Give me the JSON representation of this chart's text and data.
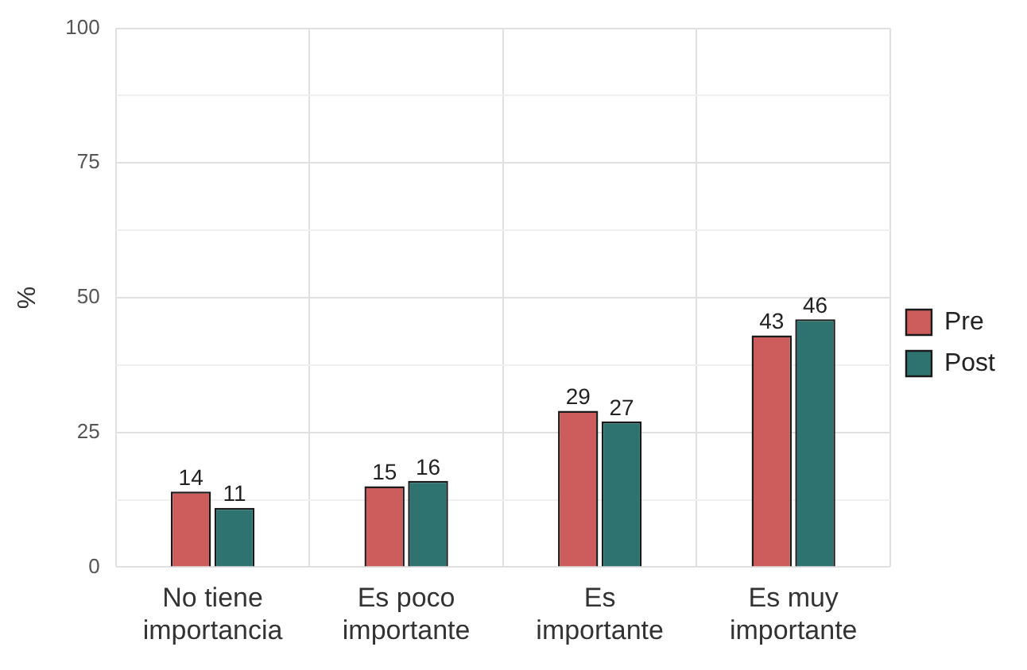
{
  "chart_data": {
    "type": "bar",
    "ylabel": "%",
    "categories": [
      "No tiene\nimportancia",
      "Es poco\nimportante",
      "Es\nimportante",
      "Es muy\nimportante"
    ],
    "series": [
      {
        "name": "Pre",
        "color": "#cd5c5c",
        "values": [
          14,
          15,
          29,
          43
        ]
      },
      {
        "name": "Post",
        "color": "#2e7370",
        "values": [
          11,
          16,
          27,
          46
        ]
      }
    ],
    "ylim": [
      0,
      100
    ],
    "yticks": [
      0,
      {
        "value": 12.5,
        "label": null
      },
      25,
      {
        "value": 37.5,
        "label": null
      },
      50,
      {
        "value": 62.5,
        "label": null
      },
      75,
      {
        "value": 87.5,
        "label": null
      },
      100
    ],
    "grid": true,
    "legend": "right",
    "data_labels": true
  }
}
